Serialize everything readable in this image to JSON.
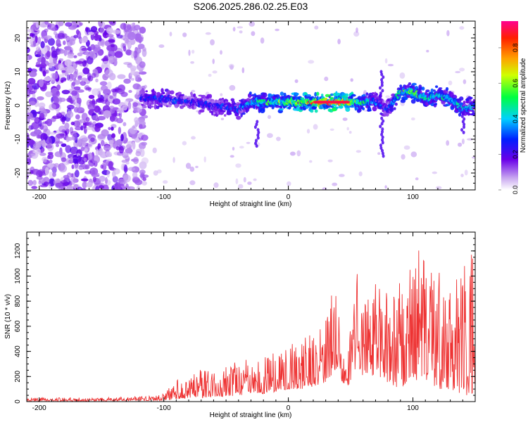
{
  "title": "S206.2025.286.02.25.E03",
  "colors": {
    "line": "#ee3333",
    "axis": "#000000",
    "background": "#ffffff"
  },
  "chart_data": [
    {
      "type": "heatmap",
      "title": "S206.2025.286.02.25.E03",
      "xlabel": "Height of straight line (km)",
      "ylabel": "Frequency (Hz)",
      "xlim": [
        -210,
        150
      ],
      "ylim": [
        -25,
        25
      ],
      "x_ticks": [
        {
          "value": -200,
          "label": "-200"
        },
        {
          "value": -100,
          "label": "-100"
        },
        {
          "value": 0,
          "label": "0"
        },
        {
          "value": 100,
          "label": "100"
        }
      ],
      "y_ticks": [
        {
          "value": 20,
          "label": "20"
        },
        {
          "value": 10,
          "label": "10"
        },
        {
          "value": 0,
          "label": "0"
        },
        {
          "value": -10,
          "label": "-10"
        },
        {
          "value": -20,
          "label": "-20"
        }
      ],
      "colorbar": {
        "label": "Normalized spectral amplitude",
        "range": [
          0,
          0.95
        ],
        "ticks": [
          {
            "value": 0.0,
            "label": "0.0"
          },
          {
            "value": 0.2,
            "label": "0.2"
          },
          {
            "value": 0.4,
            "label": "0.4"
          },
          {
            "value": 0.6,
            "label": "0.6"
          },
          {
            "value": 0.8,
            "label": "0.8"
          }
        ],
        "colormap": "rainbow (white-purple-blue-cyan-green-yellow-orange-red-magenta)"
      },
      "ridge": {
        "x": [
          -115,
          -100,
          -80,
          -60,
          -40,
          -30,
          -20,
          0,
          20,
          40,
          60,
          70,
          80,
          90,
          100,
          110,
          120,
          130,
          140,
          150
        ],
        "freq": [
          2,
          2,
          1,
          0,
          -1,
          1,
          1,
          1,
          1,
          1,
          1,
          1,
          -1,
          4,
          4,
          2,
          3,
          2,
          -1,
          0
        ],
        "peak_amplitude": [
          0.3,
          0.35,
          0.3,
          0.3,
          0.35,
          0.5,
          0.55,
          0.65,
          0.8,
          0.95,
          0.55,
          0.4,
          0.3,
          0.55,
          0.6,
          0.5,
          0.55,
          0.5,
          0.45,
          0.4
        ]
      }
    },
    {
      "type": "line",
      "xlabel": "Height of straight line (km)",
      "ylabel": "SNR (10 * v/v)",
      "xlim": [
        -210,
        150
      ],
      "ylim": [
        0,
        1350
      ],
      "x_ticks": [
        {
          "value": -200,
          "label": "-200"
        },
        {
          "value": -100,
          "label": "-100"
        },
        {
          "value": 0,
          "label": "0"
        },
        {
          "value": 100,
          "label": "100"
        }
      ],
      "y_ticks": [
        {
          "value": 0,
          "label": "0"
        },
        {
          "value": 200,
          "label": "200"
        },
        {
          "value": 400,
          "label": "400"
        },
        {
          "value": 600,
          "label": "600"
        },
        {
          "value": 800,
          "label": "800"
        },
        {
          "value": 1000,
          "label": "1000"
        },
        {
          "value": 1200,
          "label": "1200"
        }
      ],
      "series": [
        {
          "name": "SNR",
          "envelope_x": [
            -210,
            -150,
            -110,
            -100,
            -90,
            -80,
            -70,
            -60,
            -50,
            -40,
            -30,
            -20,
            -10,
            0,
            10,
            20,
            30,
            35,
            40,
            45,
            50,
            55,
            60,
            70,
            80,
            90,
            95,
            100,
            105,
            110,
            120,
            130,
            140,
            150
          ],
          "envelope_peak": [
            30,
            35,
            45,
            60,
            180,
            210,
            260,
            240,
            300,
            330,
            340,
            350,
            420,
            450,
            530,
            570,
            650,
            870,
            830,
            300,
            640,
            1100,
            870,
            980,
            880,
            1000,
            1270,
            1000,
            1230,
            1200,
            1100,
            1000,
            1090,
            1330
          ],
          "envelope_base": [
            5,
            5,
            8,
            10,
            20,
            30,
            30,
            40,
            40,
            50,
            60,
            60,
            80,
            100,
            100,
            120,
            150,
            200,
            250,
            100,
            150,
            300,
            200,
            200,
            150,
            100,
            150,
            200,
            150,
            150,
            100,
            100,
            50,
            50
          ]
        }
      ]
    }
  ]
}
